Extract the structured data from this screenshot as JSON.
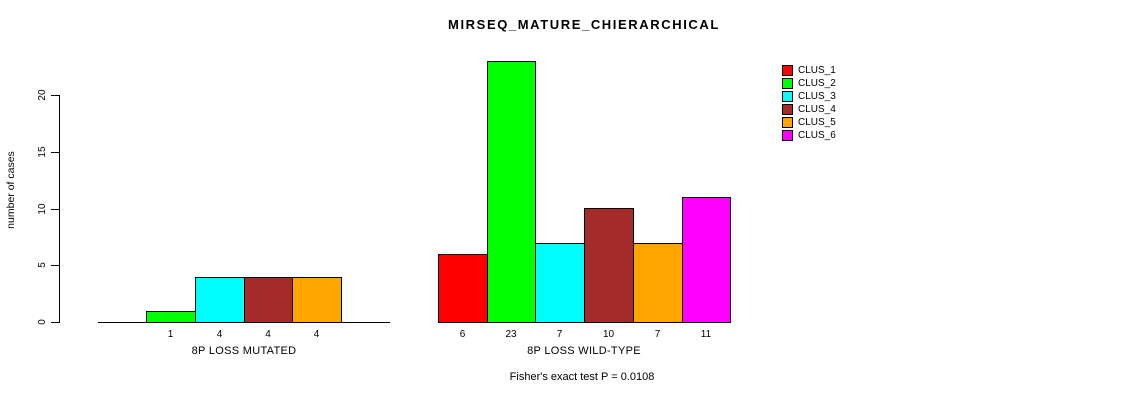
{
  "chart_data": {
    "type": "bar",
    "title": "MIRSEQ_MATURE_CHIERARCHICAL",
    "ylabel": "number of cases",
    "ylim": [
      0,
      23
    ],
    "yticks": [
      0,
      5,
      10,
      15,
      20
    ],
    "grid": false,
    "legend_position": "right",
    "series_colors": [
      "#FF0000",
      "#00FF00",
      "#00FFFF",
      "#A52A2A",
      "#FFA500",
      "#FF00FF"
    ],
    "legend": {
      "entries": [
        {
          "label": "CLUS_1",
          "color": "#FF0000"
        },
        {
          "label": "CLUS_2",
          "color": "#00FF00"
        },
        {
          "label": "CLUS_3",
          "color": "#00FFFF"
        },
        {
          "label": "CLUS_4",
          "color": "#A52A2A"
        },
        {
          "label": "CLUS_5",
          "color": "#FFA500"
        },
        {
          "label": "CLUS_6",
          "color": "#FF00FF"
        }
      ]
    },
    "groups": [
      {
        "label": "8P LOSS MUTATED",
        "categories": [
          "CLUS_1",
          "CLUS_2",
          "CLUS_3",
          "CLUS_4",
          "CLUS_5",
          "CLUS_6"
        ],
        "values": [
          0,
          1,
          4,
          4,
          4,
          0
        ],
        "value_labels": [
          "",
          "1",
          "4",
          "4",
          "4",
          ""
        ]
      },
      {
        "label": "8P LOSS WILD-TYPE",
        "categories": [
          "CLUS_1",
          "CLUS_2",
          "CLUS_3",
          "CLUS_4",
          "CLUS_5",
          "CLUS_6"
        ],
        "values": [
          6,
          23,
          7,
          10,
          7,
          11
        ],
        "value_labels": [
          "6",
          "23",
          "7",
          "10",
          "7",
          "11"
        ]
      }
    ],
    "note": "Fisher's exact test P = 0.0108"
  }
}
